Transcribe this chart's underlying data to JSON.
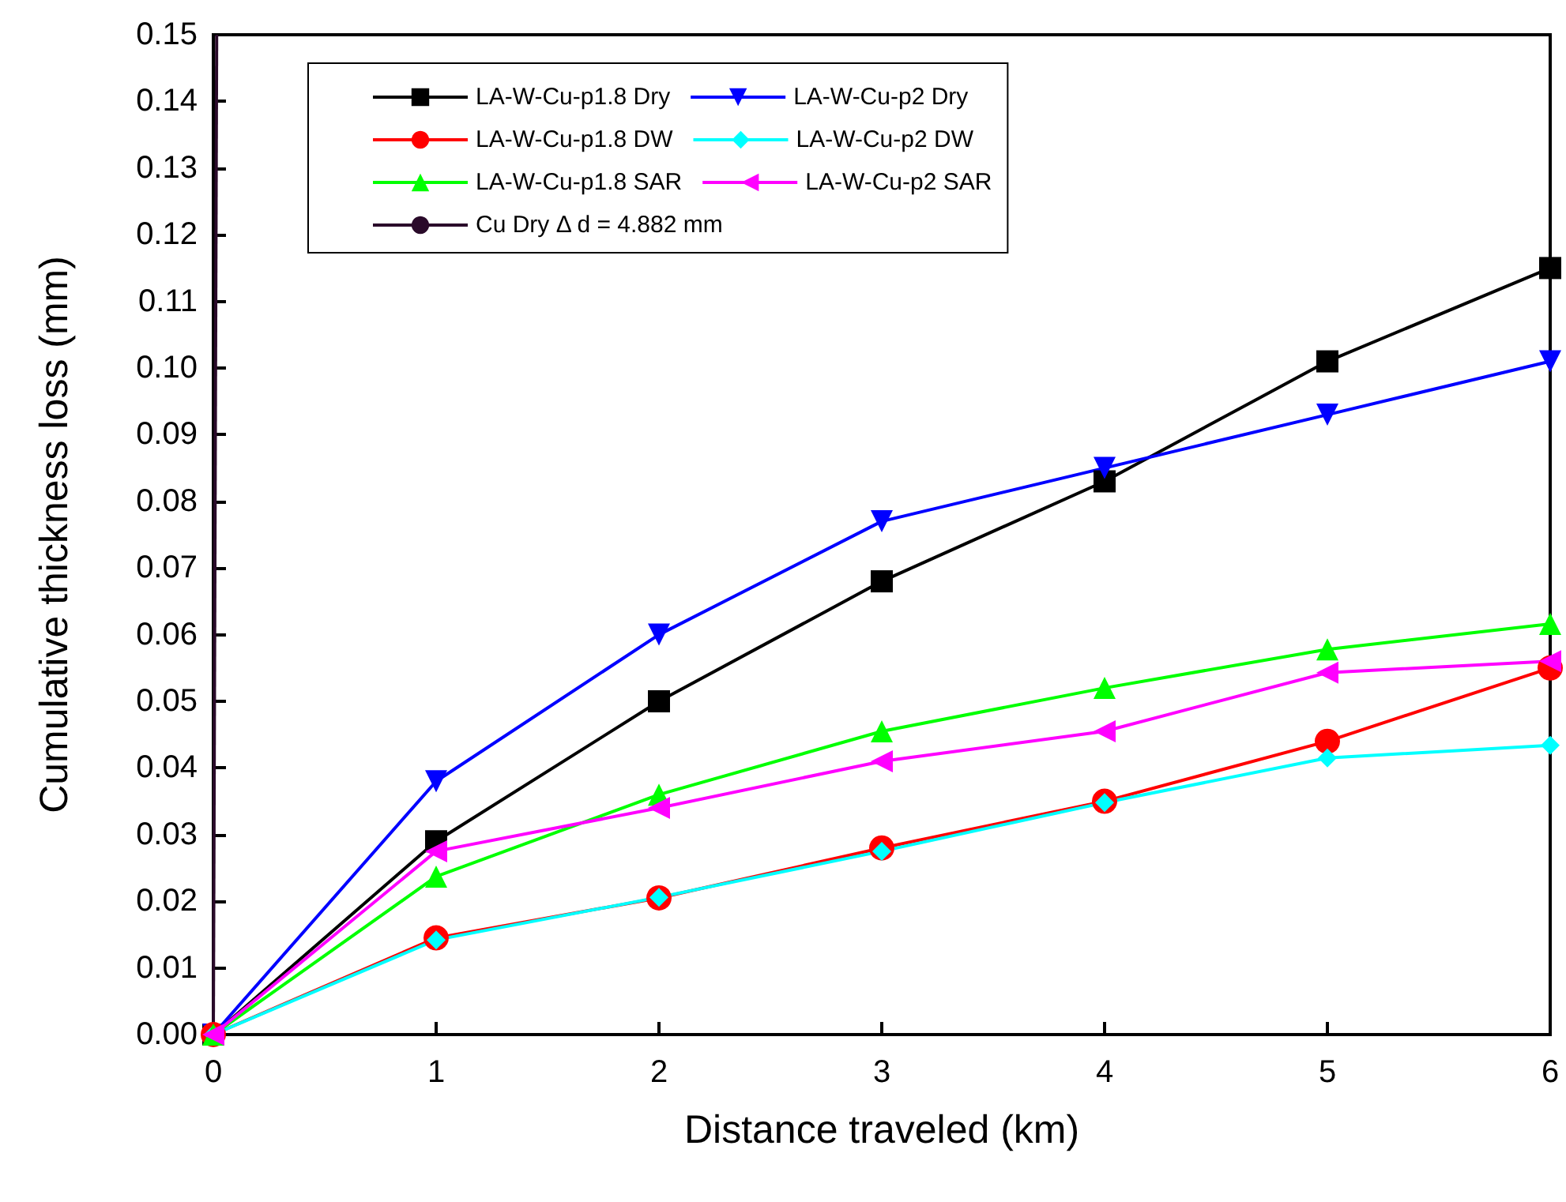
{
  "chart_data": {
    "type": "line",
    "xlabel": "Distance traveled (km)",
    "ylabel": "Cumulative thickness loss (mm)",
    "xlim": [
      0,
      6
    ],
    "xticks": [
      0,
      1,
      2,
      3,
      4,
      5,
      6
    ],
    "ylim": [
      0,
      0.15
    ],
    "yticks": [
      {
        "value": 0,
        "label": "0.00"
      },
      {
        "value": 0.01,
        "label": "0.01"
      },
      {
        "value": 0.02,
        "label": "0.02"
      },
      {
        "value": 0.03,
        "label": "0.03"
      },
      {
        "value": 0.04,
        "label": "0.04"
      },
      {
        "value": 0.05,
        "label": "0.05"
      },
      {
        "value": 0.06,
        "label": "0.06"
      },
      {
        "value": 0.07,
        "label": "0.07"
      },
      {
        "value": 0.08,
        "label": "0.08"
      },
      {
        "value": 0.09,
        "label": "0.09"
      },
      {
        "value": 0.1,
        "label": "0.10"
      },
      {
        "value": 0.11,
        "label": "0.11"
      },
      {
        "value": 0.12,
        "label": "0.12"
      },
      {
        "value": 0.13,
        "label": "0.13"
      },
      {
        "value": 0.14,
        "label": "0.14"
      },
      {
        "value": 0.15,
        "label": "0.15"
      }
    ],
    "x": [
      0,
      1,
      2,
      3,
      4,
      5,
      6
    ],
    "grid": false,
    "legend": "top",
    "line_style": "solid",
    "series": [
      {
        "name": "LA-W-Cu-p1.8 Dry",
        "color": "#000000",
        "marker": "square",
        "values": [
          0,
          0.029,
          0.05,
          0.068,
          0.083,
          0.101,
          0.115
        ]
      },
      {
        "name": "LA-W-Cu-p2 Dry",
        "color": "#0000ff",
        "marker": "triangle-down",
        "values": [
          0,
          0.038,
          0.06,
          0.077,
          0.085,
          0.093,
          0.101
        ]
      },
      {
        "name": "LA-W-Cu-p1.8 DW",
        "color": "#ff0000",
        "marker": "circle",
        "values": [
          0,
          0.0145,
          0.0205,
          0.028,
          0.035,
          0.044,
          0.055
        ]
      },
      {
        "name": "LA-W-Cu-p2 DW",
        "color": "#00ffff",
        "marker": "diamond",
        "values": [
          0,
          0.0142,
          0.0206,
          0.0275,
          0.0348,
          0.0415,
          0.0434
        ]
      },
      {
        "name": "LA-W-Cu-p1.8 SAR",
        "color": "#00ff00",
        "marker": "triangle",
        "values": [
          0,
          0.0237,
          0.036,
          0.0455,
          0.052,
          0.0578,
          0.0616
        ]
      },
      {
        "name": "LA-W-Cu-p2 SAR",
        "color": "#ff00ff",
        "marker": "triangle-left",
        "values": [
          0,
          0.0275,
          0.034,
          0.041,
          0.0455,
          0.0543,
          0.056
        ]
      },
      {
        "name": "Cu Dry Δ d = 4.882 mm",
        "color": "#2a0a2a",
        "marker": "none",
        "x": [
          0,
          0.015
        ],
        "values": [
          0,
          0.15
        ]
      }
    ]
  }
}
